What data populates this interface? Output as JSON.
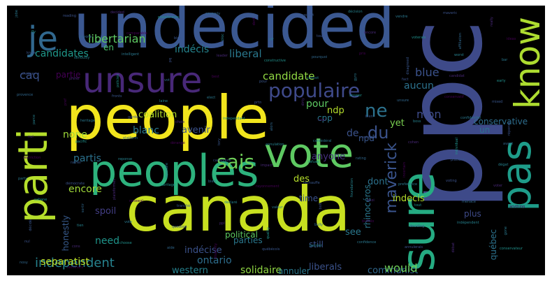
{
  "words": [
    {
      "text": "undecided",
      "color": "#3b5891"
    },
    {
      "text": "ppc",
      "color": "#3e4a89"
    },
    {
      "text": "people",
      "color": "#f2e51d"
    },
    {
      "text": "canada",
      "color": "#c8e020"
    },
    {
      "text": "vote",
      "color": "#5ec962"
    },
    {
      "text": "peoples",
      "color": "#2db27d"
    },
    {
      "text": "sure",
      "color": "#25ab82"
    },
    {
      "text": "unsure",
      "color": "#482878"
    },
    {
      "text": "pas",
      "color": "#1e9c89"
    },
    {
      "text": "know",
      "color": "#addc30"
    },
    {
      "text": "parti",
      "color": "#b5de2b"
    },
    {
      "text": "je",
      "color": "#31688e"
    },
    {
      "text": "populaire",
      "color": "#3f4a8a"
    },
    {
      "text": "sais",
      "color": "#6ece58"
    },
    {
      "text": "ne",
      "color": "#2c728e"
    },
    {
      "text": "du",
      "color": "#3b528b"
    },
    {
      "text": "maverick",
      "color": "#3a548c"
    },
    {
      "text": "independent",
      "color": "#26828e"
    },
    {
      "text": "libertarian",
      "color": "#5ec962"
    },
    {
      "text": "candidate",
      "color": "#90d743"
    },
    {
      "text": "blue",
      "color": "#3b528b"
    },
    {
      "text": "liberal",
      "color": "#2a788e"
    },
    {
      "text": "indécis",
      "color": "#25848e"
    },
    {
      "text": "aucun",
      "color": "#2c728e"
    },
    {
      "text": "mon",
      "color": "#3e4c8a"
    },
    {
      "text": "pour",
      "color": "#5ec962"
    },
    {
      "text": "candidates",
      "color": "#1f988b"
    },
    {
      "text": "caq",
      "color": "#3b528b"
    },
    {
      "text": "partie",
      "color": "#440154"
    },
    {
      "text": "coalition",
      "color": "#b5de2b"
    },
    {
      "text": "blanc",
      "color": "#2a788e"
    },
    {
      "text": "avenir",
      "color": "#3b528b"
    },
    {
      "text": "none",
      "color": "#a0da39"
    },
    {
      "text": "partis",
      "color": "#2c728e"
    },
    {
      "text": "encore",
      "color": "#a0da39"
    },
    {
      "text": "ontario",
      "color": "#2e6e8e"
    },
    {
      "text": "solidaire",
      "color": "#90d743"
    },
    {
      "text": "western",
      "color": "#26828e"
    },
    {
      "text": "separatist",
      "color": "#bddf26"
    },
    {
      "text": "honestly",
      "color": "#375a8c"
    },
    {
      "text": "spoil",
      "color": "#433e85"
    },
    {
      "text": "need",
      "color": "#1f958b"
    },
    {
      "text": "indécise",
      "color": "#3b528b"
    },
    {
      "text": "parties",
      "color": "#2a788e"
    },
    {
      "text": "political",
      "color": "#5ec962"
    },
    {
      "text": "ndp",
      "color": "#b5de2b"
    },
    {
      "text": "cpp",
      "color": "#2a788e"
    },
    {
      "text": "anyone",
      "color": "#46327e"
    },
    {
      "text": "yet",
      "color": "#7ad151"
    },
    {
      "text": "npd",
      "color": "#39568c"
    },
    {
      "text": "conservative",
      "color": "#2e6e8e"
    },
    {
      "text": "de",
      "color": "#3b528b"
    },
    {
      "text": "un",
      "color": "#2c728e"
    },
    {
      "text": "dont",
      "color": "#2c728e"
    },
    {
      "text": "des",
      "color": "#b5de2b"
    },
    {
      "text": "time",
      "color": "#3b528b"
    },
    {
      "text": "indecis",
      "color": "#b5de2b"
    },
    {
      "text": "plus",
      "color": "#3e4a89"
    },
    {
      "text": "see",
      "color": "#2a788e"
    },
    {
      "text": "still",
      "color": "#3b528b"
    },
    {
      "text": "liberals",
      "color": "#3b528b"
    },
    {
      "text": "communist",
      "color": "#31688e"
    },
    {
      "text": "annuler",
      "color": "#2a788e"
    },
    {
      "text": "would",
      "color": "#6ece58"
    },
    {
      "text": "rhinocéros",
      "color": "#2a788e"
    },
    {
      "text": "québec",
      "color": "#2c728e"
    },
    {
      "text": "en",
      "color": "#4ac16d"
    }
  ],
  "small_words": [
    "jobe",
    "reading",
    "decided",
    "plateformes",
    "severely",
    "dont",
    "support",
    "décision",
    "vendre",
    "maveric",
    "really",
    "fly",
    "anyone",
    "comparable",
    "bien",
    "bloc",
    "off",
    "tout",
    "encore",
    "voterais",
    "affiliation",
    "ideas",
    "know",
    "seriously",
    "intelligent",
    "pq",
    "leader",
    "constructive",
    "pourquoi",
    "pris",
    "disagreed",
    "worst",
    "bar",
    "choose",
    "prefer",
    "policies",
    "vot",
    "best",
    "pour",
    "cannot",
    "gyro",
    "fact",
    "candidat",
    "early",
    "provence",
    "pref",
    "fronts",
    "laine",
    "elect",
    "prtn",
    "dirty",
    "answer",
    "unsure",
    "conservatif",
    "mixed",
    "parce",
    "heritage",
    "garde",
    "choix",
    "independant",
    "alors",
    "neuf",
    "bien",
    "boss",
    "confidentiel",
    "réponse",
    "nul",
    "pacific",
    "platform",
    "dérangé",
    "tory",
    "annulation",
    "confédéral",
    "reste",
    "cohen",
    "individual",
    "avant",
    "restriction",
    "rather",
    "reponse",
    "répondre",
    "canadiens",
    "impact",
    "refuse",
    "rating",
    "incertain",
    "platform",
    "dégat",
    "party",
    "démocrate",
    "plateformes",
    "heritage",
    "bien",
    "rayonnement",
    "réchauffe",
    "foundation",
    "preference",
    "voting",
    "voter",
    "cabane",
    "sortir",
    "renewal",
    "tranché",
    "declaré",
    "valeur",
    "bolt",
    "quoi",
    "tout",
    "menace",
    "anything",
    "décidé",
    "tien",
    "vote",
    "question",
    "ppl",
    "quality",
    "bully",
    "buffalo",
    "deciding",
    "indépendent",
    "gone",
    "nul",
    "cons",
    "choose",
    "aide",
    "disability",
    "québécois",
    "bernier",
    "confidence",
    "annulerais",
    "débat",
    "conservateur",
    "nosy",
    "seminars"
  ]
}
